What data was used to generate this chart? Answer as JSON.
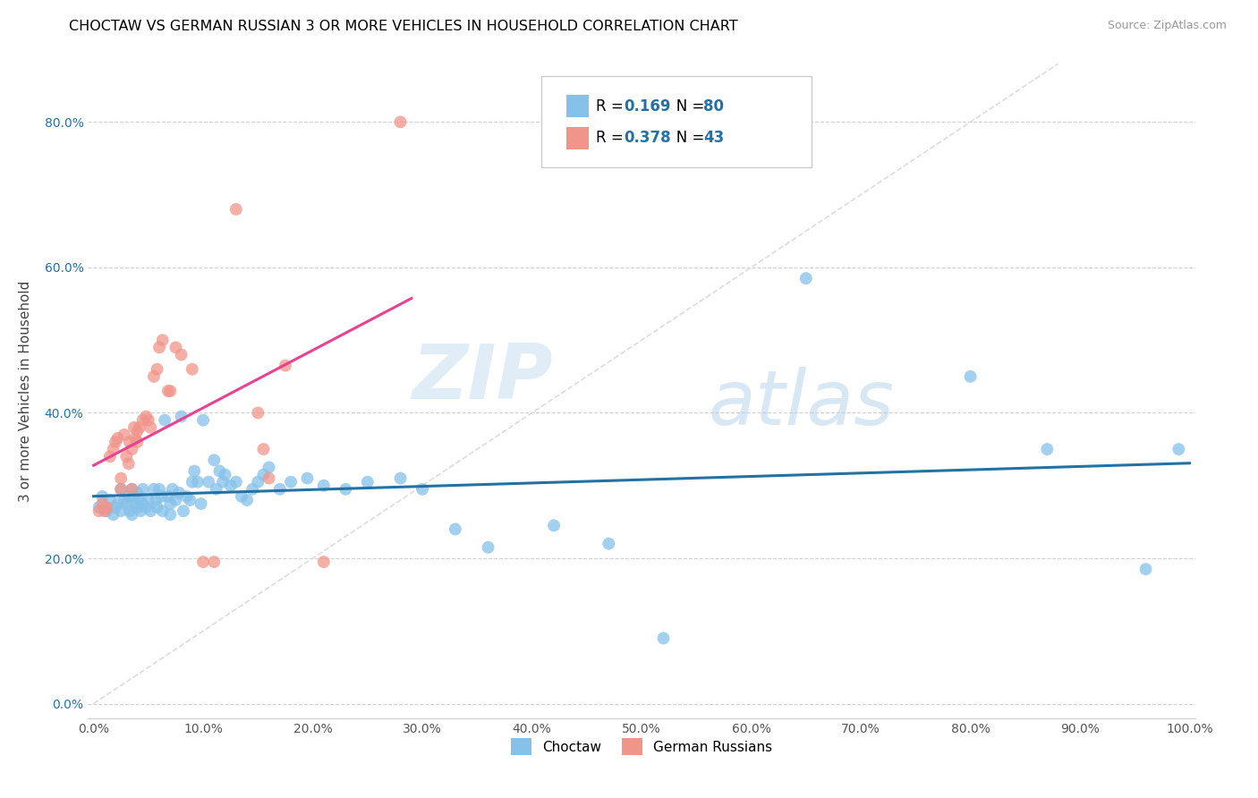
{
  "title": "CHOCTAW VS GERMAN RUSSIAN 3 OR MORE VEHICLES IN HOUSEHOLD CORRELATION CHART",
  "source": "Source: ZipAtlas.com",
  "ylabel": "3 or more Vehicles in Household",
  "watermark_zip": "ZIP",
  "watermark_atlas": "atlas",
  "xlim": [
    -0.005,
    1.005
  ],
  "ylim": [
    -0.02,
    0.88
  ],
  "xticks": [
    0.0,
    0.1,
    0.2,
    0.3,
    0.4,
    0.5,
    0.6,
    0.7,
    0.8,
    0.9,
    1.0
  ],
  "yticks": [
    0.0,
    0.2,
    0.4,
    0.6,
    0.8
  ],
  "xtick_labels": [
    "0.0%",
    "10.0%",
    "20.0%",
    "30.0%",
    "40.0%",
    "50.0%",
    "60.0%",
    "70.0%",
    "80.0%",
    "90.0%",
    "100.0%"
  ],
  "ytick_labels": [
    "0.0%",
    "20.0%",
    "40.0%",
    "60.0%",
    "80.0%"
  ],
  "choctaw_color": "#85c1e9",
  "german_russian_color": "#f1948a",
  "choctaw_line_color": "#2471a3",
  "german_russian_line_color": "#e84393",
  "choctaw_R": 0.169,
  "choctaw_N": 80,
  "german_russian_R": 0.378,
  "german_russian_N": 43,
  "legend_R_color": "#2471a3",
  "legend_label1": "Choctaw",
  "legend_label2": "German Russians",
  "choctaw_x": [
    0.005,
    0.008,
    0.012,
    0.015,
    0.018,
    0.02,
    0.022,
    0.025,
    0.025,
    0.028,
    0.03,
    0.032,
    0.033,
    0.035,
    0.035,
    0.037,
    0.038,
    0.04,
    0.04,
    0.042,
    0.043,
    0.045,
    0.045,
    0.048,
    0.05,
    0.052,
    0.055,
    0.057,
    0.058,
    0.06,
    0.062,
    0.063,
    0.065,
    0.068,
    0.07,
    0.07,
    0.072,
    0.075,
    0.078,
    0.08,
    0.082,
    0.085,
    0.088,
    0.09,
    0.092,
    0.095,
    0.098,
    0.1,
    0.105,
    0.11,
    0.112,
    0.115,
    0.118,
    0.12,
    0.125,
    0.13,
    0.135,
    0.14,
    0.145,
    0.15,
    0.155,
    0.16,
    0.17,
    0.18,
    0.195,
    0.21,
    0.23,
    0.25,
    0.28,
    0.3,
    0.33,
    0.36,
    0.42,
    0.47,
    0.52,
    0.65,
    0.8,
    0.87,
    0.96,
    0.99
  ],
  "choctaw_y": [
    0.27,
    0.285,
    0.265,
    0.28,
    0.26,
    0.27,
    0.275,
    0.265,
    0.295,
    0.28,
    0.275,
    0.285,
    0.265,
    0.26,
    0.295,
    0.285,
    0.275,
    0.29,
    0.27,
    0.28,
    0.265,
    0.295,
    0.275,
    0.27,
    0.28,
    0.265,
    0.295,
    0.28,
    0.27,
    0.295,
    0.285,
    0.265,
    0.39,
    0.285,
    0.275,
    0.26,
    0.295,
    0.28,
    0.29,
    0.395,
    0.265,
    0.285,
    0.28,
    0.305,
    0.32,
    0.305,
    0.275,
    0.39,
    0.305,
    0.335,
    0.295,
    0.32,
    0.305,
    0.315,
    0.3,
    0.305,
    0.285,
    0.28,
    0.295,
    0.305,
    0.315,
    0.325,
    0.295,
    0.305,
    0.31,
    0.3,
    0.295,
    0.305,
    0.31,
    0.295,
    0.24,
    0.215,
    0.245,
    0.22,
    0.09,
    0.585,
    0.45,
    0.35,
    0.185,
    0.35
  ],
  "german_russian_x": [
    0.005,
    0.008,
    0.01,
    0.012,
    0.015,
    0.018,
    0.02,
    0.022,
    0.025,
    0.025,
    0.028,
    0.03,
    0.032,
    0.033,
    0.035,
    0.035,
    0.037,
    0.038,
    0.04,
    0.04,
    0.042,
    0.045,
    0.048,
    0.05,
    0.052,
    0.055,
    0.058,
    0.06,
    0.063,
    0.068,
    0.07,
    0.075,
    0.08,
    0.09,
    0.1,
    0.11,
    0.13,
    0.15,
    0.155,
    0.16,
    0.175,
    0.21,
    0.28
  ],
  "german_russian_y": [
    0.265,
    0.275,
    0.265,
    0.27,
    0.34,
    0.35,
    0.36,
    0.365,
    0.295,
    0.31,
    0.37,
    0.34,
    0.33,
    0.36,
    0.295,
    0.35,
    0.38,
    0.365,
    0.36,
    0.375,
    0.38,
    0.39,
    0.395,
    0.39,
    0.38,
    0.45,
    0.46,
    0.49,
    0.5,
    0.43,
    0.43,
    0.49,
    0.48,
    0.46,
    0.195,
    0.195,
    0.68,
    0.4,
    0.35,
    0.31,
    0.465,
    0.195,
    0.8
  ]
}
